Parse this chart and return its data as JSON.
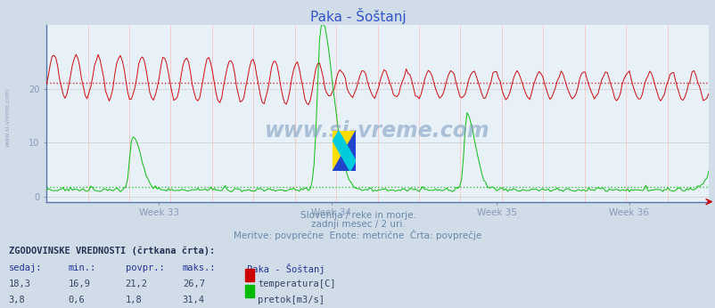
{
  "title": "Paka - Šoštanj",
  "title_color": "#3355cc",
  "bg_color": "#d0dce8",
  "plot_bg_color": "#e8f0f8",
  "subtitle_lines": [
    "Slovenija / reke in morje.",
    "zadnji mesec / 2 uri.",
    "Meritve: povprečne  Enote: metrične  Črta: povprečje"
  ],
  "subtitle_color": "#6688aa",
  "xlabel_color": "#6688aa",
  "week_labels": [
    "Week 33",
    "Week 34",
    "Week 35",
    "Week 36"
  ],
  "yticks": [
    0,
    10,
    20
  ],
  "ymax": 32,
  "ymin": -1,
  "temp_color": "#cc0000",
  "temp_avg": 21.2,
  "flow_color": "#00bb00",
  "flow_avg": 1.8,
  "watermark": "www.si-vreme.com",
  "grid_color_h": "#cccccc",
  "grid_color_v": "#ffaaaa",
  "axis_color": "#8899bb",
  "table_header": "ZGODOVINSKE VREDNOSTI (črtkana črta):",
  "table_cols": [
    "sedaj:",
    "min.:",
    "povpr.:",
    "maks.:",
    "Paka - Šoštanj"
  ],
  "table_temp_row": [
    "18,3",
    "16,9",
    "21,2",
    "26,7",
    "temperatura[C]"
  ],
  "table_flow_row": [
    "3,8",
    "0,6",
    "1,8",
    "31,4",
    "pretok[m3/s]"
  ]
}
